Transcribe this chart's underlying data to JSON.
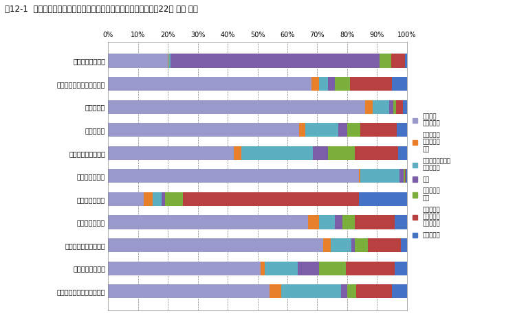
{
  "title": "図12-1  職業大分類別における従業上の地位別の就業者割合（平成22年 全国 男）",
  "categories": [
    "管理的職業従業者",
    "専門的・技術的職業従業者",
    "事務従業者",
    "販売従業者",
    "サービス職業従業者",
    "保安職業従業者",
    "農林漁業従業者",
    "生産工程従業者",
    "輸送・機械運転従業者",
    "建設・採掘従業者",
    "運搬・清掃・包装等従業者"
  ],
  "legend_labels": [
    "正規の職\n員・従業員",
    "労働者派遣\n事業所派遣\n社員",
    "パート・アルバイ\nト・その他",
    "役員",
    "雇人のある\n業主",
    "雇人のない\n業主（家庭\n内就者含）",
    "家族従業者"
  ],
  "colors": [
    "#9999CC",
    "#E87F2A",
    "#5BAFC0",
    "#7B5EA7",
    "#7BAF3C",
    "#B94040",
    "#4472C4"
  ],
  "data": [
    [
      20.0,
      0.3,
      0.5,
      70.0,
      4.0,
      4.5,
      0.7
    ],
    [
      68.0,
      2.5,
      3.0,
      2.5,
      5.0,
      14.0,
      5.0
    ],
    [
      86.0,
      2.5,
      5.5,
      1.5,
      0.8,
      2.5,
      1.2
    ],
    [
      64.0,
      2.0,
      11.0,
      3.0,
      4.5,
      12.0,
      3.5
    ],
    [
      42.0,
      2.5,
      24.0,
      5.0,
      9.0,
      14.5,
      3.0
    ],
    [
      84.0,
      0.5,
      13.0,
      1.5,
      0.3,
      0.4,
      0.3
    ],
    [
      12.0,
      3.0,
      3.0,
      1.0,
      6.0,
      59.0,
      16.0
    ],
    [
      67.0,
      3.5,
      5.5,
      2.5,
      4.0,
      13.5,
      4.0
    ],
    [
      72.0,
      2.5,
      7.0,
      1.0,
      4.5,
      11.0,
      2.0
    ],
    [
      51.0,
      1.5,
      11.0,
      7.0,
      9.0,
      16.5,
      4.0
    ],
    [
      54.0,
      4.0,
      20.0,
      2.0,
      3.0,
      12.0,
      5.0
    ]
  ],
  "xtick_labels": [
    "0%",
    "10%",
    "20%",
    "30%",
    "40%",
    "50%",
    "60%",
    "70%",
    "80%",
    "90%",
    "100%"
  ],
  "xtick_vals": [
    0,
    10,
    20,
    30,
    40,
    50,
    60,
    70,
    80,
    90,
    100
  ],
  "grid_vals": [
    10,
    20,
    30,
    40,
    50,
    60,
    70,
    80,
    90
  ],
  "title_fontsize": 8.5,
  "tick_fontsize": 7.0,
  "bar_height": 0.6,
  "figsize": [
    7.49,
    4.66
  ],
  "dpi": 100
}
